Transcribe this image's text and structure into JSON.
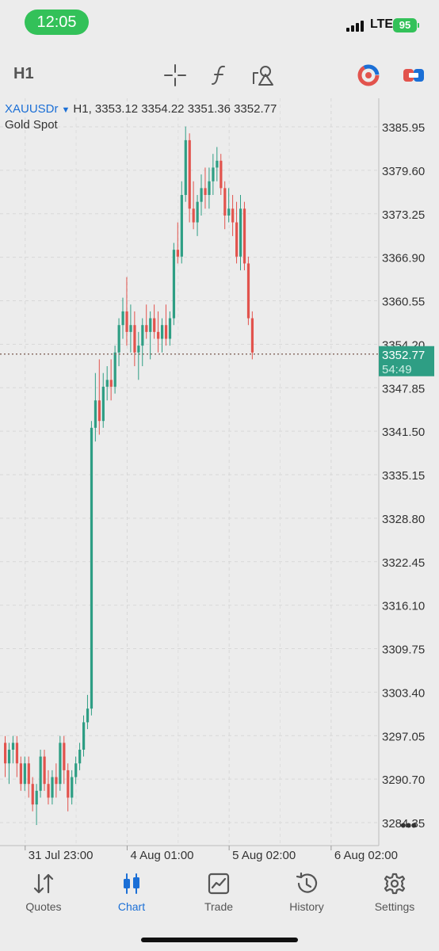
{
  "status": {
    "time": "12:05",
    "network": "LTE",
    "battery": "95"
  },
  "toolbar": {
    "timeframe": "H1",
    "icons": [
      "crosshair-icon",
      "function-icon",
      "objects-icon",
      "trading-signal-icon",
      "trade-panel-icon"
    ]
  },
  "symbol": {
    "name": "XAUUSDr",
    "ohlc": "H1, 3353.12 3354.22 3351.36 3352.77",
    "description": "Gold Spot"
  },
  "price_tag": {
    "price": "3352.77",
    "countdown": "54:49"
  },
  "colors": {
    "bull": "#2e9e84",
    "bear": "#e2534d",
    "price_tag": "#2e9e84",
    "accent": "#1b6fd6"
  },
  "chart_data": {
    "type": "candlestick",
    "symbol": "XAUUSDr",
    "timeframe": "H1",
    "y_ticks": [
      "3385.95",
      "3379.60",
      "3373.25",
      "3366.90",
      "3360.55",
      "3354.20",
      "3347.85",
      "3341.50",
      "3335.15",
      "3328.80",
      "3322.45",
      "3316.10",
      "3309.75",
      "3303.40",
      "3297.05",
      "3290.70",
      "3284.35"
    ],
    "y_range": [
      3282.5,
      3388.5
    ],
    "x_ticks": [
      "31 Jul 23:00",
      "4 Aug 01:00",
      "5 Aug 02:00",
      "6 Aug 02:00"
    ],
    "x_tick_index": [
      5,
      31,
      57,
      83
    ],
    "current_price": 3352.77,
    "grid": true,
    "candles": [
      [
        3296,
        3297,
        3291,
        3293
      ],
      [
        3293,
        3296,
        3290,
        3295
      ],
      [
        3295,
        3297,
        3293,
        3296
      ],
      [
        3296,
        3297,
        3291,
        3293
      ],
      [
        3293,
        3294,
        3289,
        3290
      ],
      [
        3290,
        3294,
        3289,
        3293
      ],
      [
        3293,
        3294,
        3288,
        3290
      ],
      [
        3290,
        3291,
        3286,
        3287
      ],
      [
        3287,
        3290,
        3284,
        3289
      ],
      [
        3289,
        3295,
        3288,
        3294
      ],
      [
        3294,
        3295,
        3289,
        3290
      ],
      [
        3290,
        3292,
        3287,
        3288
      ],
      [
        3288,
        3292,
        3287,
        3291
      ],
      [
        3291,
        3293,
        3288,
        3290
      ],
      [
        3290,
        3297,
        3289,
        3296
      ],
      [
        3296,
        3297,
        3290,
        3292
      ],
      [
        3292,
        3293,
        3286,
        3288
      ],
      [
        3288,
        3292,
        3287,
        3291
      ],
      [
        3291,
        3294,
        3290,
        3293
      ],
      [
        3293,
        3296,
        3292,
        3295
      ],
      [
        3295,
        3300,
        3294,
        3299
      ],
      [
        3299,
        3303,
        3298,
        3301
      ],
      [
        3301,
        3343,
        3300,
        3342
      ],
      [
        3342,
        3350,
        3340,
        3346
      ],
      [
        3346,
        3352,
        3341,
        3343
      ],
      [
        3343,
        3350,
        3342,
        3348
      ],
      [
        3348,
        3351,
        3346,
        3349
      ],
      [
        3349,
        3352,
        3346,
        3348
      ],
      [
        3348,
        3354,
        3347,
        3353
      ],
      [
        3353,
        3358,
        3351,
        3357
      ],
      [
        3357,
        3361,
        3355,
        3359
      ],
      [
        3359,
        3364,
        3354,
        3356
      ],
      [
        3356,
        3360,
        3353,
        3357
      ],
      [
        3357,
        3359,
        3351,
        3353
      ],
      [
        3353,
        3356,
        3349,
        3354
      ],
      [
        3354,
        3358,
        3351,
        3357
      ],
      [
        3357,
        3360,
        3355,
        3356
      ],
      [
        3356,
        3359,
        3352,
        3358
      ],
      [
        3358,
        3360,
        3355,
        3356
      ],
      [
        3356,
        3359,
        3353,
        3355
      ],
      [
        3355,
        3358,
        3353,
        3357
      ],
      [
        3357,
        3360,
        3354,
        3355
      ],
      [
        3355,
        3359,
        3354,
        3358
      ],
      [
        3358,
        3369,
        3357,
        3368
      ],
      [
        3368,
        3372,
        3366,
        3367
      ],
      [
        3367,
        3378,
        3366,
        3376
      ],
      [
        3376,
        3386,
        3375,
        3384
      ],
      [
        3384,
        3385,
        3372,
        3374
      ],
      [
        3374,
        3378,
        3371,
        3372
      ],
      [
        3372,
        3376,
        3370,
        3375
      ],
      [
        3375,
        3379,
        3373,
        3377
      ],
      [
        3377,
        3380,
        3374,
        3376
      ],
      [
        3376,
        3380,
        3374,
        3378
      ],
      [
        3378,
        3382,
        3376,
        3380
      ],
      [
        3380,
        3383,
        3378,
        3381
      ],
      [
        3381,
        3382,
        3376,
        3377
      ],
      [
        3377,
        3378,
        3371,
        3373
      ],
      [
        3373,
        3377,
        3372,
        3374
      ],
      [
        3374,
        3376,
        3370,
        3372
      ],
      [
        3372,
        3375,
        3366,
        3367
      ],
      [
        3367,
        3376,
        3365,
        3374
      ],
      [
        3374,
        3375,
        3365,
        3366
      ],
      [
        3366,
        3367,
        3357,
        3358
      ],
      [
        3358,
        3359,
        3352,
        3353
      ]
    ]
  },
  "tabs": [
    {
      "label": "Quotes",
      "icon": "quotes-icon"
    },
    {
      "label": "Chart",
      "icon": "chart-icon"
    },
    {
      "label": "Trade",
      "icon": "trade-icon"
    },
    {
      "label": "History",
      "icon": "history-icon"
    },
    {
      "label": "Settings",
      "icon": "settings-icon"
    }
  ],
  "active_tab": "Chart"
}
